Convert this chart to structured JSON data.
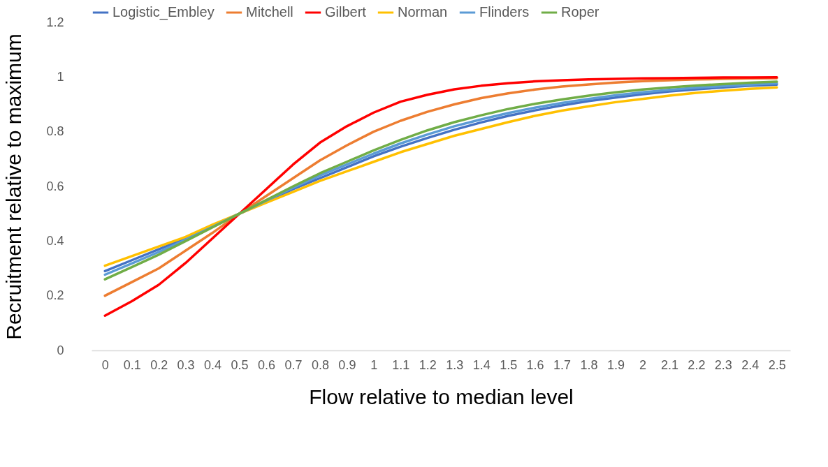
{
  "chart_data": {
    "type": "line",
    "xlabel": "Flow relative to median level",
    "ylabel": "Recruitment relative to maximum",
    "categories": [
      "0",
      "0.1",
      "0.2",
      "0.3",
      "0.4",
      "0.5",
      "0.6",
      "0.7",
      "0.8",
      "0.9",
      "1",
      "1.1",
      "1.2",
      "1.3",
      "1.4",
      "1.5",
      "1.6",
      "1.7",
      "1.8",
      "1.9",
      "2",
      "2.1",
      "2.2",
      "2.3",
      "2.4",
      "2.5"
    ],
    "ylim": [
      0,
      1.2
    ],
    "yticks": [
      0,
      0.2,
      0.4,
      0.6,
      0.8,
      1,
      1.2
    ],
    "grid": false,
    "legend": "top",
    "marker": "none",
    "line_style": "solid",
    "series": [
      {
        "name": "Logistic_Embley",
        "color": "#4472c4",
        "values": [
          0.29,
          0.33,
          0.37,
          0.41,
          0.455,
          0.5,
          0.545,
          0.59,
          0.63,
          0.67,
          0.71,
          0.745,
          0.777,
          0.807,
          0.834,
          0.858,
          0.878,
          0.896,
          0.912,
          0.925,
          0.937,
          0.947,
          0.955,
          0.962,
          0.968,
          0.972
        ]
      },
      {
        "name": "Mitchell",
        "color": "#ed7d31",
        "values": [
          0.2,
          0.25,
          0.3,
          0.365,
          0.43,
          0.5,
          0.565,
          0.63,
          0.695,
          0.75,
          0.8,
          0.84,
          0.873,
          0.9,
          0.923,
          0.94,
          0.954,
          0.965,
          0.973,
          0.98,
          0.985,
          0.988,
          0.991,
          0.993,
          0.995,
          0.996
        ]
      },
      {
        "name": "Gilbert",
        "color": "#ff0000",
        "values": [
          0.127,
          0.18,
          0.24,
          0.32,
          0.41,
          0.5,
          0.59,
          0.68,
          0.76,
          0.82,
          0.87,
          0.91,
          0.935,
          0.955,
          0.968,
          0.977,
          0.984,
          0.988,
          0.991,
          0.993,
          0.995,
          0.996,
          0.997,
          0.998,
          0.998,
          0.999
        ]
      },
      {
        "name": "Norman",
        "color": "#ffc000",
        "values": [
          0.31,
          0.345,
          0.38,
          0.415,
          0.46,
          0.5,
          0.54,
          0.58,
          0.62,
          0.655,
          0.69,
          0.725,
          0.755,
          0.785,
          0.81,
          0.835,
          0.858,
          0.877,
          0.893,
          0.908,
          0.92,
          0.932,
          0.942,
          0.95,
          0.957,
          0.962
        ]
      },
      {
        "name": "Flinders",
        "color": "#5b9bd5",
        "values": [
          0.277,
          0.318,
          0.36,
          0.405,
          0.452,
          0.5,
          0.548,
          0.595,
          0.64,
          0.68,
          0.72,
          0.757,
          0.79,
          0.82,
          0.845,
          0.868,
          0.888,
          0.905,
          0.92,
          0.933,
          0.944,
          0.953,
          0.961,
          0.967,
          0.972,
          0.977
        ]
      },
      {
        "name": "Roper",
        "color": "#70ad47",
        "values": [
          0.26,
          0.305,
          0.35,
          0.4,
          0.45,
          0.5,
          0.55,
          0.6,
          0.648,
          0.69,
          0.732,
          0.77,
          0.805,
          0.835,
          0.86,
          0.883,
          0.902,
          0.918,
          0.932,
          0.944,
          0.954,
          0.962,
          0.969,
          0.974,
          0.979,
          0.983
        ]
      }
    ]
  }
}
